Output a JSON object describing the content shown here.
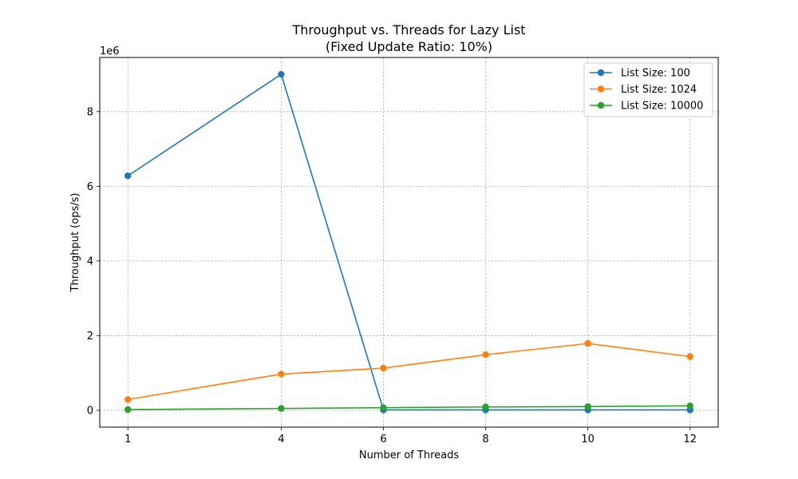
{
  "chart_data": {
    "type": "line",
    "title_line1": "Throughput vs. Threads for Lazy List",
    "title_line2": "(Fixed Update Ratio: 10%)",
    "xlabel": "Number of Threads",
    "ylabel": "Throughput (ops/s)",
    "y_offset_label": "1e6",
    "x": [
      1,
      4,
      6,
      8,
      10,
      12
    ],
    "x_ticks": [
      1,
      4,
      6,
      8,
      10,
      12
    ],
    "y_ticks": [
      0,
      2,
      4,
      6,
      8
    ],
    "y_tick_labels": [
      "0",
      "2",
      "4",
      "6",
      "8"
    ],
    "xlim": [
      0.45,
      12.55
    ],
    "ylim": [
      -450000,
      9450000
    ],
    "y_scale": 1000000,
    "grid": true,
    "grid_style": "dashed",
    "legend_position": "top-right",
    "series": [
      {
        "name": "List Size: 100",
        "color": "#1f77b4",
        "values": [
          6280000,
          9000000,
          10000,
          10000,
          10000,
          10000
        ]
      },
      {
        "name": "List Size: 1024",
        "color": "#ff7f0e",
        "values": [
          290000,
          970000,
          1130000,
          1490000,
          1790000,
          1440000
        ]
      },
      {
        "name": "List Size: 10000",
        "color": "#2ca02c",
        "values": [
          20000,
          50000,
          70000,
          90000,
          100000,
          120000
        ]
      }
    ]
  }
}
